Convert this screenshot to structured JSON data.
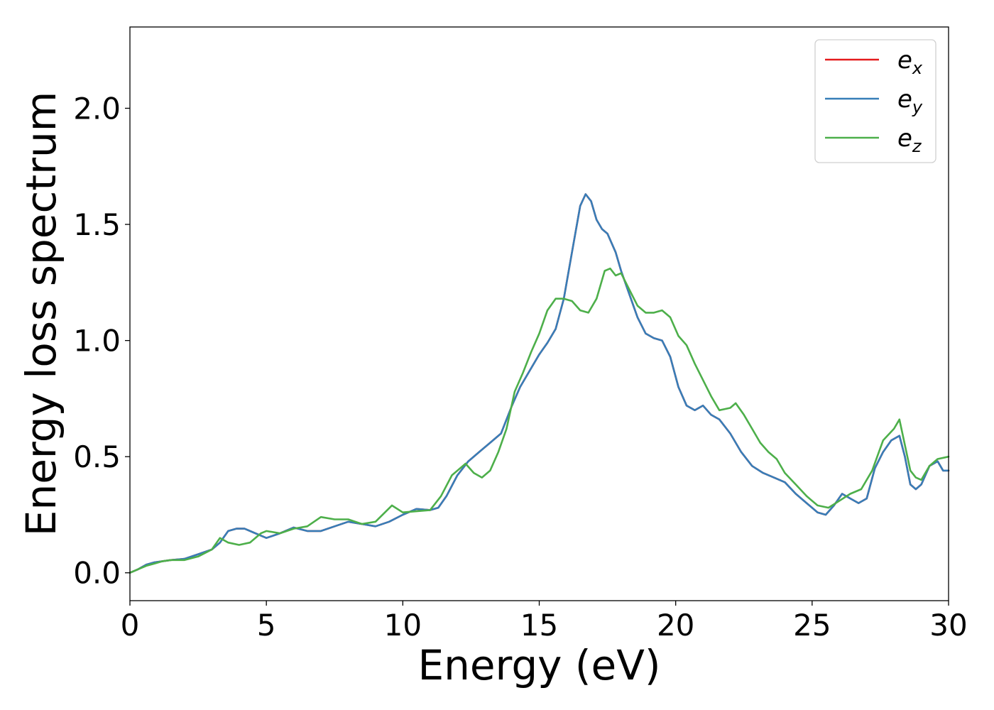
{
  "chart_data": {
    "type": "line",
    "title": "",
    "xlabel": "Energy (eV)",
    "ylabel": "Energy loss spectrum",
    "xlim": [
      0,
      30
    ],
    "ylim": [
      -0.12,
      2.35
    ],
    "xticks": [
      0,
      5,
      10,
      15,
      20,
      25,
      30
    ],
    "yticks": [
      0.0,
      0.5,
      1.0,
      1.5,
      2.0
    ],
    "xtick_labels": [
      "0",
      "5",
      "10",
      "15",
      "20",
      "25",
      "30"
    ],
    "ytick_labels": [
      "0.0",
      "0.5",
      "1.0",
      "1.5",
      "2.0"
    ],
    "grid": false,
    "legend_position": "top-right",
    "series": [
      {
        "name": "e_x",
        "label_base": "e",
        "label_sub": "x",
        "color": "#e41a1c",
        "x": [
          0,
          0.3,
          0.6,
          0.9,
          1.2,
          1.5,
          2.0,
          2.5,
          3.0,
          3.3,
          3.6,
          3.9,
          4.2,
          4.5,
          5.0,
          5.5,
          6.0,
          6.5,
          7.0,
          7.5,
          8.0,
          8.5,
          9.0,
          9.5,
          10.0,
          10.5,
          11.0,
          11.3,
          11.6,
          12.0,
          12.4,
          12.8,
          13.2,
          13.6,
          14.0,
          14.3,
          14.6,
          15.0,
          15.3,
          15.6,
          15.9,
          16.2,
          16.5,
          16.7,
          16.9,
          17.1,
          17.3,
          17.5,
          17.8,
          18.0,
          18.3,
          18.6,
          18.9,
          19.2,
          19.5,
          19.8,
          20.1,
          20.4,
          20.7,
          21.0,
          21.3,
          21.6,
          22.0,
          22.4,
          22.8,
          23.2,
          23.6,
          24.0,
          24.4,
          24.8,
          25.2,
          25.5,
          25.8,
          26.1,
          26.4,
          26.7,
          27.0,
          27.3,
          27.6,
          27.9,
          28.2,
          28.4,
          28.6,
          28.8,
          29.0,
          29.3,
          29.6,
          29.8,
          30.0
        ],
        "y": [
          0,
          0.015,
          0.035,
          0.045,
          0.05,
          0.055,
          0.06,
          0.08,
          0.1,
          0.13,
          0.18,
          0.19,
          0.19,
          0.175,
          0.15,
          0.17,
          0.195,
          0.18,
          0.18,
          0.2,
          0.22,
          0.21,
          0.2,
          0.22,
          0.25,
          0.275,
          0.27,
          0.28,
          0.33,
          0.42,
          0.48,
          0.52,
          0.56,
          0.6,
          0.72,
          0.8,
          0.86,
          0.94,
          0.99,
          1.05,
          1.18,
          1.38,
          1.58,
          1.63,
          1.6,
          1.52,
          1.48,
          1.46,
          1.38,
          1.3,
          1.2,
          1.1,
          1.03,
          1.01,
          1.0,
          0.93,
          0.8,
          0.72,
          0.7,
          0.72,
          0.68,
          0.66,
          0.6,
          0.52,
          0.46,
          0.43,
          0.41,
          0.39,
          0.34,
          0.3,
          0.26,
          0.25,
          0.29,
          0.34,
          0.32,
          0.3,
          0.32,
          0.45,
          0.52,
          0.57,
          0.59,
          0.5,
          0.38,
          0.36,
          0.38,
          0.46,
          0.48,
          0.44,
          0.44
        ]
      },
      {
        "name": "e_y",
        "label_base": "e",
        "label_sub": "y",
        "color": "#377eb8",
        "x": [
          0,
          0.3,
          0.6,
          0.9,
          1.2,
          1.5,
          2.0,
          2.5,
          3.0,
          3.3,
          3.6,
          3.9,
          4.2,
          4.5,
          5.0,
          5.5,
          6.0,
          6.5,
          7.0,
          7.5,
          8.0,
          8.5,
          9.0,
          9.5,
          10.0,
          10.5,
          11.0,
          11.3,
          11.6,
          12.0,
          12.4,
          12.8,
          13.2,
          13.6,
          14.0,
          14.3,
          14.6,
          15.0,
          15.3,
          15.6,
          15.9,
          16.2,
          16.5,
          16.7,
          16.9,
          17.1,
          17.3,
          17.5,
          17.8,
          18.0,
          18.3,
          18.6,
          18.9,
          19.2,
          19.5,
          19.8,
          20.1,
          20.4,
          20.7,
          21.0,
          21.3,
          21.6,
          22.0,
          22.4,
          22.8,
          23.2,
          23.6,
          24.0,
          24.4,
          24.8,
          25.2,
          25.5,
          25.8,
          26.1,
          26.4,
          26.7,
          27.0,
          27.3,
          27.6,
          27.9,
          28.2,
          28.4,
          28.6,
          28.8,
          29.0,
          29.3,
          29.6,
          29.8,
          30.0
        ],
        "y": [
          0,
          0.015,
          0.035,
          0.045,
          0.05,
          0.055,
          0.06,
          0.08,
          0.1,
          0.13,
          0.18,
          0.19,
          0.19,
          0.175,
          0.15,
          0.17,
          0.195,
          0.18,
          0.18,
          0.2,
          0.22,
          0.21,
          0.2,
          0.22,
          0.25,
          0.275,
          0.27,
          0.28,
          0.33,
          0.42,
          0.48,
          0.52,
          0.56,
          0.6,
          0.72,
          0.8,
          0.86,
          0.94,
          0.99,
          1.05,
          1.18,
          1.38,
          1.58,
          1.63,
          1.6,
          1.52,
          1.48,
          1.46,
          1.38,
          1.3,
          1.2,
          1.1,
          1.03,
          1.01,
          1.0,
          0.93,
          0.8,
          0.72,
          0.7,
          0.72,
          0.68,
          0.66,
          0.6,
          0.52,
          0.46,
          0.43,
          0.41,
          0.39,
          0.34,
          0.3,
          0.26,
          0.25,
          0.29,
          0.34,
          0.32,
          0.3,
          0.32,
          0.45,
          0.52,
          0.57,
          0.59,
          0.5,
          0.38,
          0.36,
          0.38,
          0.46,
          0.48,
          0.44,
          0.44
        ]
      },
      {
        "name": "e_z",
        "label_base": "e",
        "label_sub": "z",
        "color": "#4daf4a",
        "x": [
          0,
          0.3,
          0.6,
          0.9,
          1.2,
          1.5,
          2.0,
          2.5,
          3.0,
          3.3,
          3.6,
          4.0,
          4.4,
          4.8,
          5.0,
          5.5,
          6.0,
          6.5,
          7.0,
          7.5,
          8.0,
          8.5,
          9.0,
          9.6,
          10.0,
          10.5,
          11.0,
          11.4,
          11.8,
          12.0,
          12.3,
          12.6,
          12.9,
          13.2,
          13.5,
          13.8,
          14.1,
          14.4,
          14.7,
          15.0,
          15.3,
          15.6,
          15.9,
          16.2,
          16.5,
          16.8,
          17.1,
          17.4,
          17.6,
          17.8,
          18.0,
          18.3,
          18.6,
          18.9,
          19.2,
          19.5,
          19.8,
          20.1,
          20.4,
          20.7,
          21.0,
          21.3,
          21.6,
          22.0,
          22.2,
          22.5,
          22.8,
          23.1,
          23.4,
          23.7,
          24.0,
          24.4,
          24.8,
          25.2,
          25.6,
          26.0,
          26.4,
          26.8,
          27.2,
          27.6,
          28.0,
          28.2,
          28.4,
          28.6,
          28.8,
          29.0,
          29.3,
          29.6,
          30.0
        ],
        "y": [
          0,
          0.015,
          0.03,
          0.04,
          0.05,
          0.055,
          0.055,
          0.07,
          0.1,
          0.15,
          0.13,
          0.12,
          0.13,
          0.17,
          0.18,
          0.17,
          0.19,
          0.2,
          0.24,
          0.23,
          0.23,
          0.21,
          0.22,
          0.29,
          0.26,
          0.265,
          0.27,
          0.33,
          0.42,
          0.44,
          0.47,
          0.43,
          0.41,
          0.44,
          0.52,
          0.62,
          0.78,
          0.86,
          0.95,
          1.03,
          1.13,
          1.18,
          1.18,
          1.17,
          1.13,
          1.12,
          1.18,
          1.3,
          1.31,
          1.28,
          1.29,
          1.22,
          1.15,
          1.12,
          1.12,
          1.13,
          1.1,
          1.02,
          0.98,
          0.9,
          0.83,
          0.76,
          0.7,
          0.71,
          0.73,
          0.68,
          0.62,
          0.56,
          0.52,
          0.49,
          0.43,
          0.38,
          0.33,
          0.29,
          0.28,
          0.31,
          0.34,
          0.36,
          0.44,
          0.57,
          0.62,
          0.66,
          0.55,
          0.44,
          0.41,
          0.4,
          0.46,
          0.49,
          0.5
        ]
      }
    ]
  }
}
